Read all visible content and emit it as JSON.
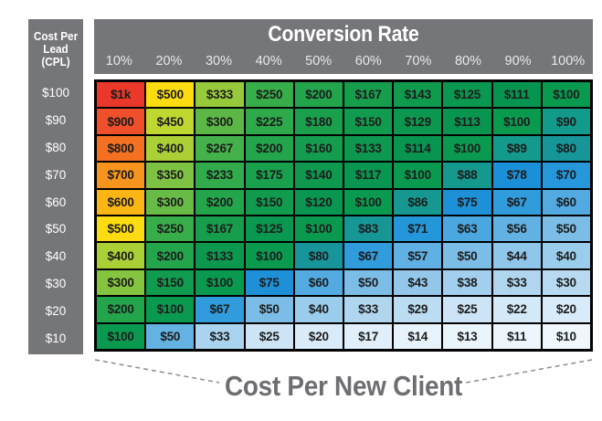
{
  "chart_data": {
    "type": "heatmap",
    "title": "Conversion Rate",
    "row_axis_label": "Cost Per Lead (CPL)",
    "value_label": "Cost Per New Client",
    "columns": [
      "10%",
      "20%",
      "30%",
      "40%",
      "50%",
      "60%",
      "70%",
      "80%",
      "90%",
      "100%"
    ],
    "row_labels": [
      "$100",
      "$90",
      "$80",
      "$70",
      "$60",
      "$50",
      "$40",
      "$30",
      "$20",
      "$10"
    ],
    "cell_text": [
      [
        "$1k",
        "$500",
        "$333",
        "$250",
        "$200",
        "$167",
        "$143",
        "$125",
        "$111",
        "$100"
      ],
      [
        "$900",
        "$450",
        "$300",
        "$225",
        "$180",
        "$150",
        "$129",
        "$113",
        "$100",
        "$90"
      ],
      [
        "$800",
        "$400",
        "$267",
        "$200",
        "$160",
        "$133",
        "$114",
        "$100",
        "$89",
        "$80"
      ],
      [
        "$700",
        "$350",
        "$233",
        "$175",
        "$140",
        "$117",
        "$100",
        "$88",
        "$78",
        "$70"
      ],
      [
        "$600",
        "$300",
        "$200",
        "$150",
        "$120",
        "$100",
        "$86",
        "$75",
        "$67",
        "$60"
      ],
      [
        "$500",
        "$250",
        "$167",
        "$125",
        "$100",
        "$83",
        "$71",
        "$63",
        "$56",
        "$50"
      ],
      [
        "$400",
        "$200",
        "$133",
        "$100",
        "$80",
        "$67",
        "$57",
        "$50",
        "$44",
        "$40"
      ],
      [
        "$300",
        "$150",
        "$100",
        "$75",
        "$60",
        "$50",
        "$43",
        "$38",
        "$33",
        "$30"
      ],
      [
        "$200",
        "$100",
        "$67",
        "$50",
        "$40",
        "$33",
        "$29",
        "$25",
        "$22",
        "$20"
      ],
      [
        "$100",
        "$50",
        "$33",
        "$25",
        "$20",
        "$17",
        "$14",
        "$13",
        "$11",
        "$10"
      ]
    ],
    "cell_values": [
      [
        1000,
        500,
        333,
        250,
        200,
        167,
        143,
        125,
        111,
        100
      ],
      [
        900,
        450,
        300,
        225,
        180,
        150,
        129,
        113,
        100,
        90
      ],
      [
        800,
        400,
        267,
        200,
        160,
        133,
        114,
        100,
        89,
        80
      ],
      [
        700,
        350,
        233,
        175,
        140,
        117,
        100,
        88,
        78,
        70
      ],
      [
        600,
        300,
        200,
        150,
        120,
        100,
        86,
        75,
        67,
        60
      ],
      [
        500,
        250,
        167,
        125,
        100,
        83,
        71,
        63,
        56,
        50
      ],
      [
        400,
        200,
        133,
        100,
        80,
        67,
        57,
        50,
        44,
        40
      ],
      [
        300,
        150,
        100,
        75,
        60,
        50,
        43,
        38,
        33,
        30
      ],
      [
        200,
        100,
        67,
        50,
        40,
        33,
        29,
        25,
        22,
        20
      ],
      [
        100,
        50,
        33,
        25,
        20,
        17,
        14,
        13,
        11,
        10
      ]
    ],
    "cell_colors": [
      [
        "#ea392b",
        "#fcdc10",
        "#97ca3b",
        "#38ae4b",
        "#23a54c",
        "#169e4d",
        "#0f9a4e",
        "#0a974f",
        "#069550",
        "#0a9a4f"
      ],
      [
        "#ef4f2b",
        "#c0d730",
        "#5cb747",
        "#2eaa4b",
        "#1aa04d",
        "#119b4e",
        "#0b974f",
        "#079550",
        "#0a9a4f",
        "#129a8a"
      ],
      [
        "#f37121",
        "#abd036",
        "#45b14a",
        "#23a54c",
        "#149d4e",
        "#0c984f",
        "#079550",
        "#0a9a4f",
        "#139a8c",
        "#17969a"
      ],
      [
        "#f7941d",
        "#7ec243",
        "#31ab4b",
        "#19a04d",
        "#0e994e",
        "#089650",
        "#0a9a4f",
        "#15998e",
        "#1b90d8",
        "#2597da"
      ],
      [
        "#fbb616",
        "#68bc46",
        "#23a54c",
        "#119b4e",
        "#099650",
        "#0a9a4f",
        "#169891",
        "#1d90d8",
        "#319cdc",
        "#52aae1"
      ],
      [
        "#fcdc10",
        "#38ae4b",
        "#169e4d",
        "#0a974f",
        "#0a9a4f",
        "#179696",
        "#2496da",
        "#4aa7e0",
        "#62b1e3",
        "#7cbde7"
      ],
      [
        "#abd036",
        "#23a54c",
        "#0c984f",
        "#0a9a4f",
        "#18959b",
        "#319cdc",
        "#60b0e3",
        "#7cbde7",
        "#90c6ea",
        "#9acceb"
      ],
      [
        "#84c43f",
        "#119b4e",
        "#0a9a4f",
        "#1d90d8",
        "#52aae1",
        "#7cbde7",
        "#92c7ea",
        "#a1cfed",
        "#b0d6ef",
        "#b8daf1"
      ],
      [
        "#23a54c",
        "#0a9a4f",
        "#319cdc",
        "#7cbde7",
        "#9acceb",
        "#b0d6ef",
        "#bbdcf1",
        "#cce4f6",
        "#d4e9f7",
        "#d9ebf8"
      ],
      [
        "#0a9a4f",
        "#64b2e2",
        "#a9d3ef",
        "#cce4f6",
        "#d9ebf8",
        "#e0effa",
        "#e7f3fb",
        "#e9f4fb",
        "#edf6fc",
        "#eff7fd"
      ]
    ],
    "legend_position": "none",
    "grid": true
  },
  "left_header": {
    "line1": "Cost Per",
    "line2": "Lead",
    "line3": "(CPL)"
  },
  "header": {
    "title": "Conversion Rate"
  },
  "footer": {
    "label": "Cost Per New Client"
  },
  "colors": {
    "panel_gray": "#75767a",
    "percent_text": "#e8e9ea",
    "grid_border": "#000000",
    "cell_text": "#1c1c1c",
    "footer_text": "#6d6e71",
    "dashed_line": "#8a8c8f"
  }
}
